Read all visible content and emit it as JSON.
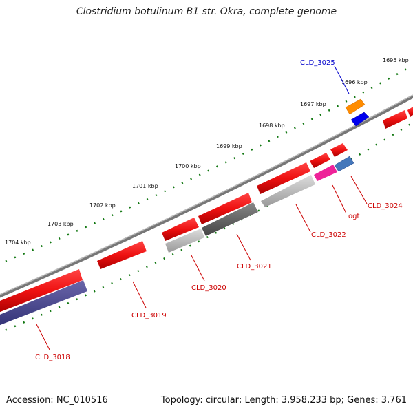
{
  "title": "Clostridium botulinum B1 str. Okra, complete genome",
  "footer": {
    "accession": "Accession: NC_010516",
    "topology": "Topology: circular; Length: 3,958,233 bp; Genes: 3,761"
  },
  "scale_labels": [
    "1695 kbp",
    "1696 kbp",
    "1697 kbp",
    "1698 kbp",
    "1699 kbp",
    "1700 kbp",
    "1701 kbp",
    "1702 kbp",
    "1703 kbp",
    "1704 kbp"
  ],
  "gene_labels": [
    "CLD_3025",
    "CLD_3024",
    "ogt",
    "CLD_3022",
    "CLD_3021",
    "CLD_3020",
    "CLD_3019",
    "CLD_3018"
  ],
  "colors": {
    "red": "#ee1111",
    "blue_label": "#0000cc",
    "red_label": "#cc0000",
    "tick": "#117711",
    "backbone": "#777777"
  }
}
